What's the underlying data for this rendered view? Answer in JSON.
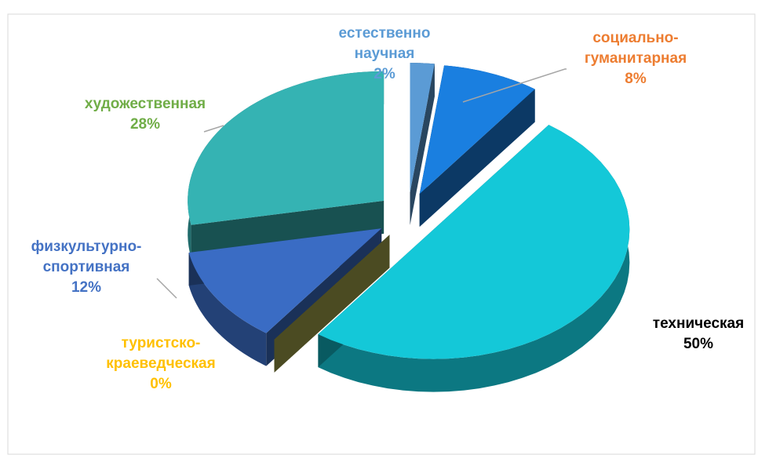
{
  "chart_data": {
    "type": "pie3d",
    "categories": [
      "естественнонаучная",
      "социально-гуманитарная",
      "техническая",
      "туристско-краеведческая",
      "физкультурно-спортивная",
      "художественная"
    ],
    "values": [
      2,
      8,
      50,
      0,
      12,
      28
    ],
    "value_labels": [
      "2%",
      "8%",
      "50%",
      "0%",
      "12%",
      "28%"
    ],
    "colors": [
      "#5b9bd5",
      "#1a7fe0",
      "#14c8d8",
      "#a7a64b",
      "#3a6cc4",
      "#35b3b3"
    ],
    "label_colors": [
      "#5b9bd5",
      "#ed7d31",
      "#000000",
      "#ffc000",
      "#4472c4",
      "#70ad47"
    ]
  }
}
